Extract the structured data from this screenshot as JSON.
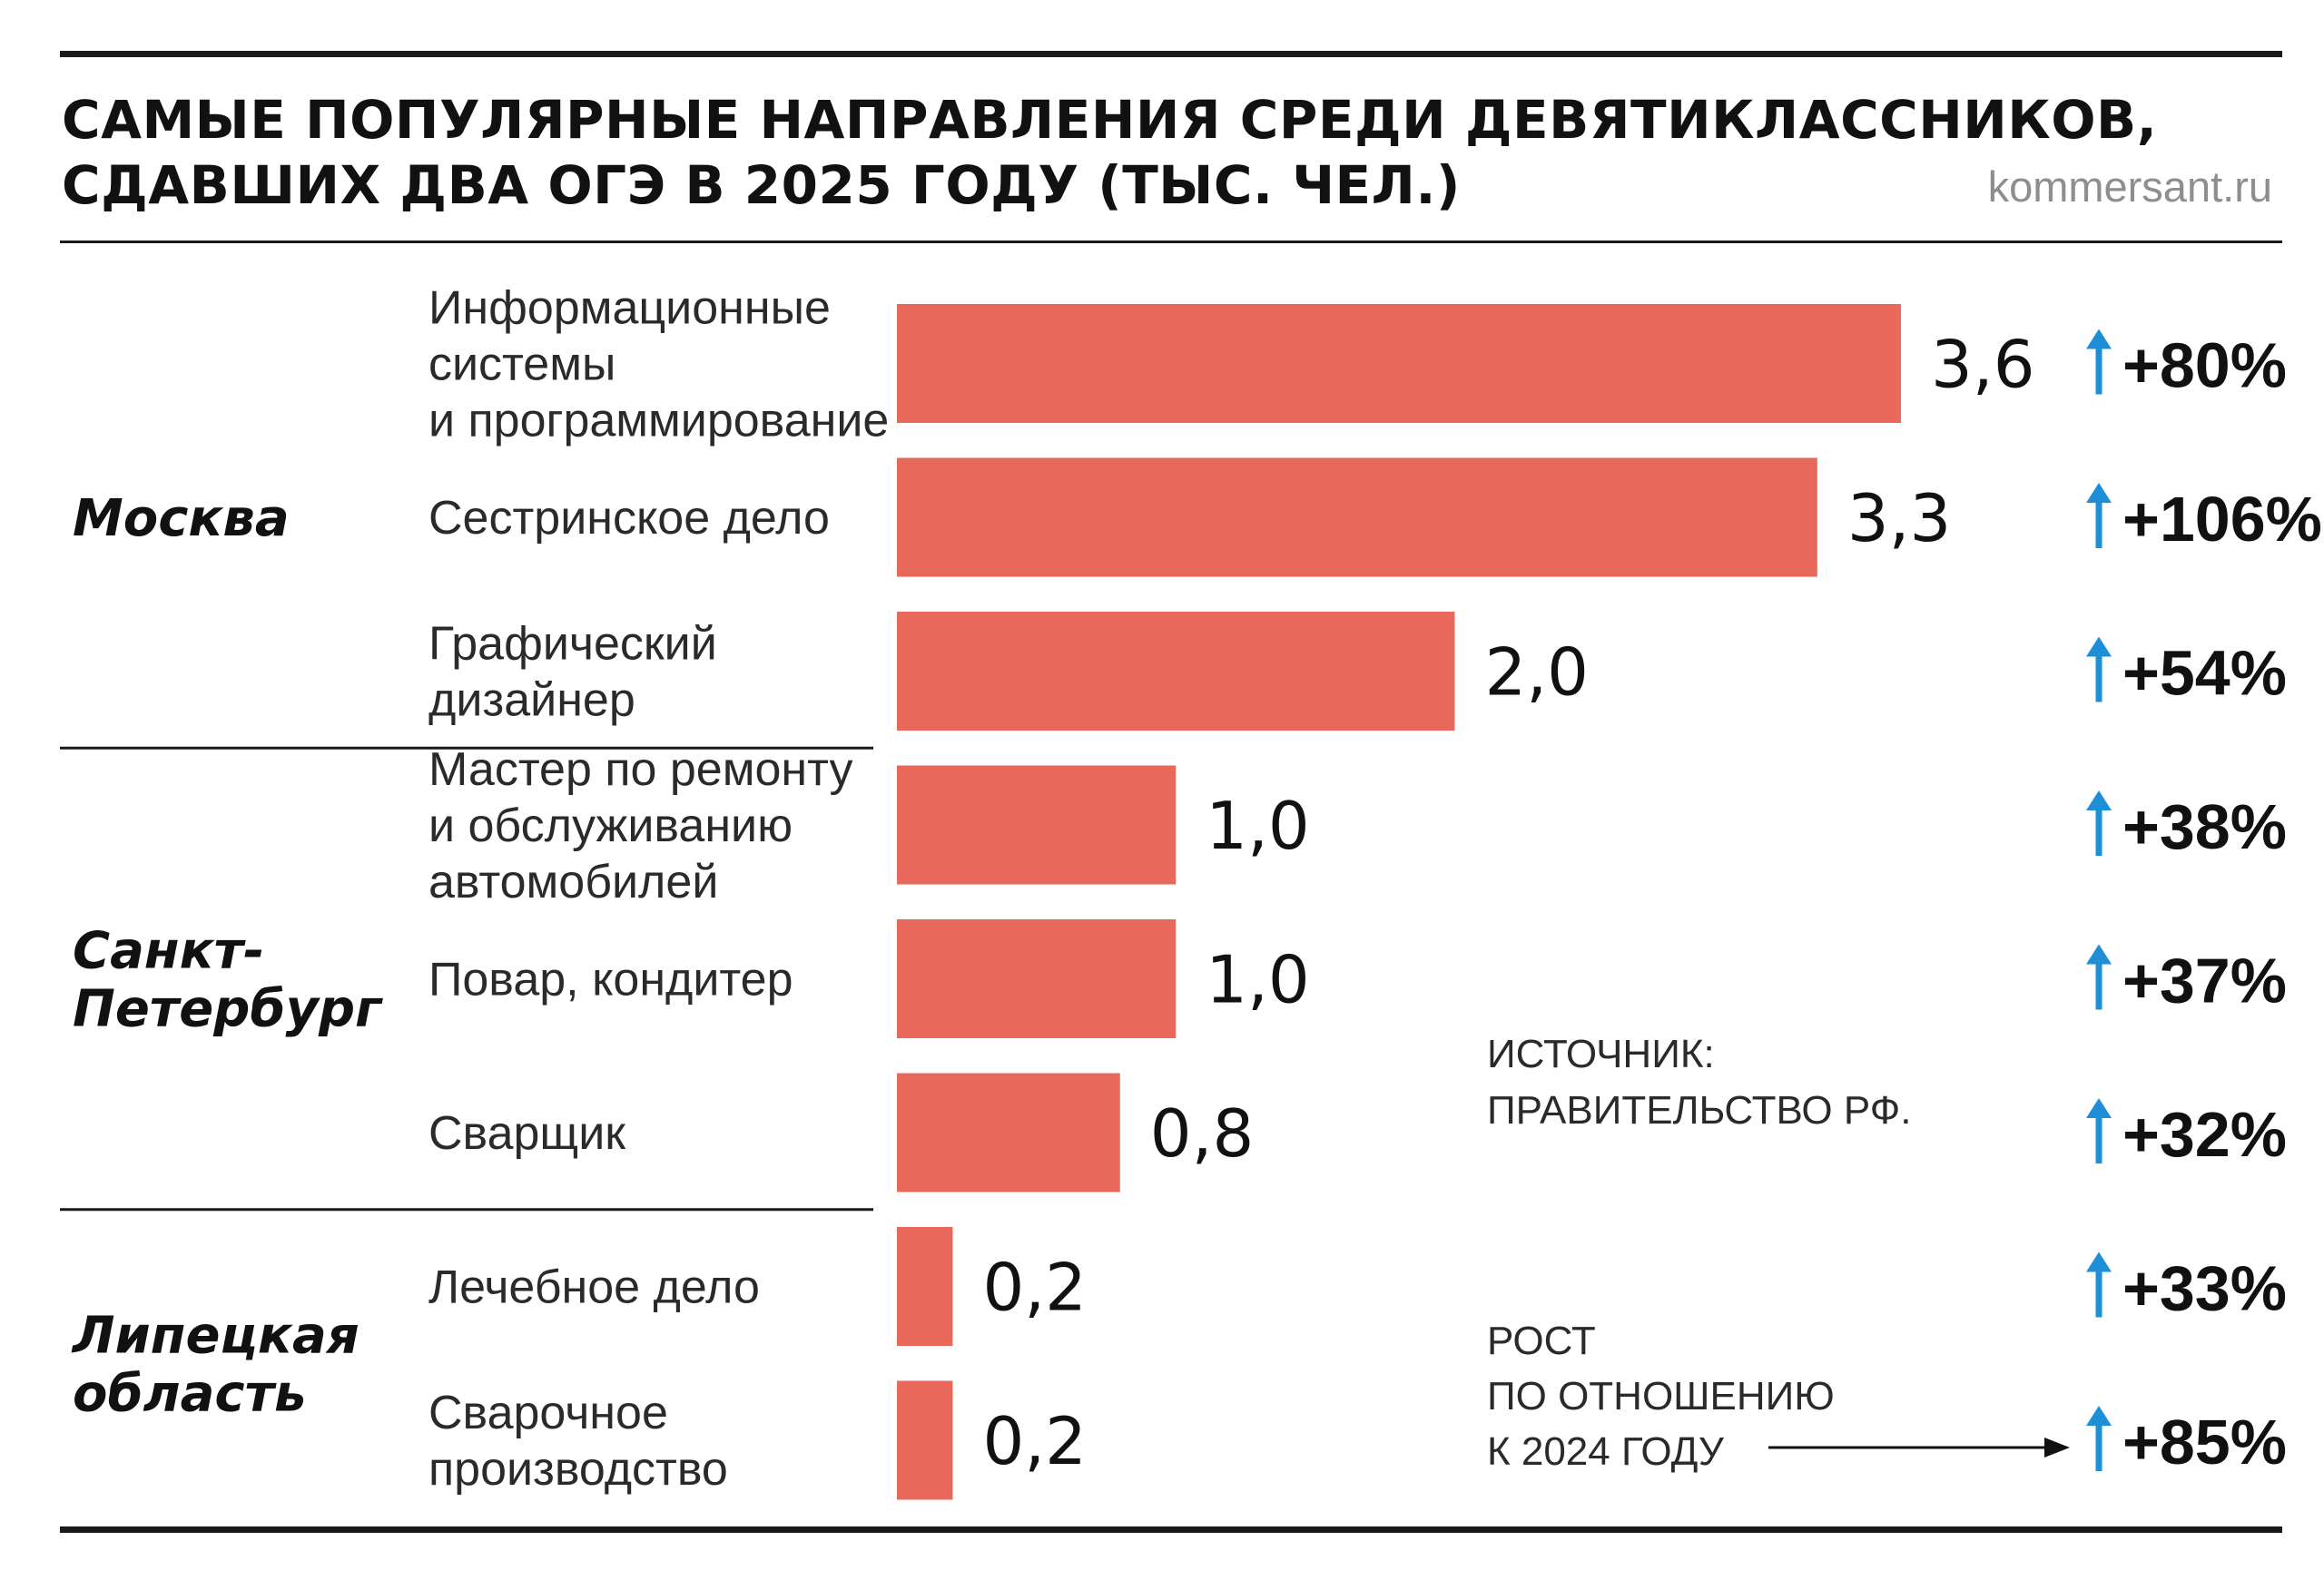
{
  "header": {
    "title_line_1": "САМЫЕ ПОПУЛЯРНЫЕ НАПРАВЛЕНИЯ СРЕДИ ДЕВЯТИКЛАССНИКОВ,",
    "title_line_2": "СДАВШИХ ДВА ОГЭ В 2025 ГОДУ (ТЫС. ЧЕЛ.)",
    "site": "kommersant.ru"
  },
  "colors": {
    "bar": "#e8695c",
    "arrow": "#1e8fd6",
    "text": "#111111",
    "muted": "#8e8e8e"
  },
  "chart_data": {
    "type": "bar",
    "orientation": "horizontal",
    "title": "САМЫЕ ПОПУЛЯРНЫЕ НАПРАВЛЕНИЯ СРЕДИ ДЕВЯТИКЛАССНИКОВ, СДАВШИХ ДВА ОГЭ В 2025 ГОДУ (ТЫС. ЧЕЛ.)",
    "unit": "тыс. чел.",
    "xlim": [
      0,
      3.6
    ],
    "regions": [
      {
        "name_lines": [
          "Москва"
        ],
        "rows": [
          0,
          1,
          2
        ]
      },
      {
        "name_lines": [
          "Санкт-",
          "Петербург"
        ],
        "rows": [
          3,
          4,
          5
        ]
      },
      {
        "name_lines": [
          "Липецкая",
          "область"
        ],
        "rows": [
          6,
          7
        ]
      }
    ],
    "rows": [
      {
        "label_lines": [
          "Информационные",
          "системы",
          "и программирование"
        ],
        "value": 3.6,
        "value_label": "3,6",
        "growth": "+80%"
      },
      {
        "label_lines": [
          "Сестринское дело"
        ],
        "value": 3.3,
        "value_label": "3,3",
        "growth": "+106%"
      },
      {
        "label_lines": [
          "Графический",
          "дизайнер"
        ],
        "value": 2.0,
        "value_label": "2,0",
        "growth": "+54%"
      },
      {
        "label_lines": [
          "Мастер по ремонту",
          "и обслуживанию",
          "автомобилей"
        ],
        "value": 1.0,
        "value_label": "1,0",
        "growth": "+38%"
      },
      {
        "label_lines": [
          "Повар, кондитер"
        ],
        "value": 1.0,
        "value_label": "1,0",
        "growth": "+37%"
      },
      {
        "label_lines": [
          "Сварщик"
        ],
        "value": 0.8,
        "value_label": "0,8",
        "growth": "+32%"
      },
      {
        "label_lines": [
          "Лечебное дело"
        ],
        "value": 0.2,
        "value_label": "0,2",
        "growth": "+33%"
      },
      {
        "label_lines": [
          "Сварочное",
          "производство"
        ],
        "value": 0.2,
        "value_label": "0,2",
        "growth": "+85%"
      }
    ],
    "growth_arrow": "↑",
    "source_lines": [
      "ИСТОЧНИК:",
      "ПРАВИТЕЛЬСТВО РФ."
    ],
    "growth_note_lines": [
      "РОСТ",
      "ПО ОТНОШЕНИЮ",
      "К 2024 ГОДУ"
    ]
  }
}
